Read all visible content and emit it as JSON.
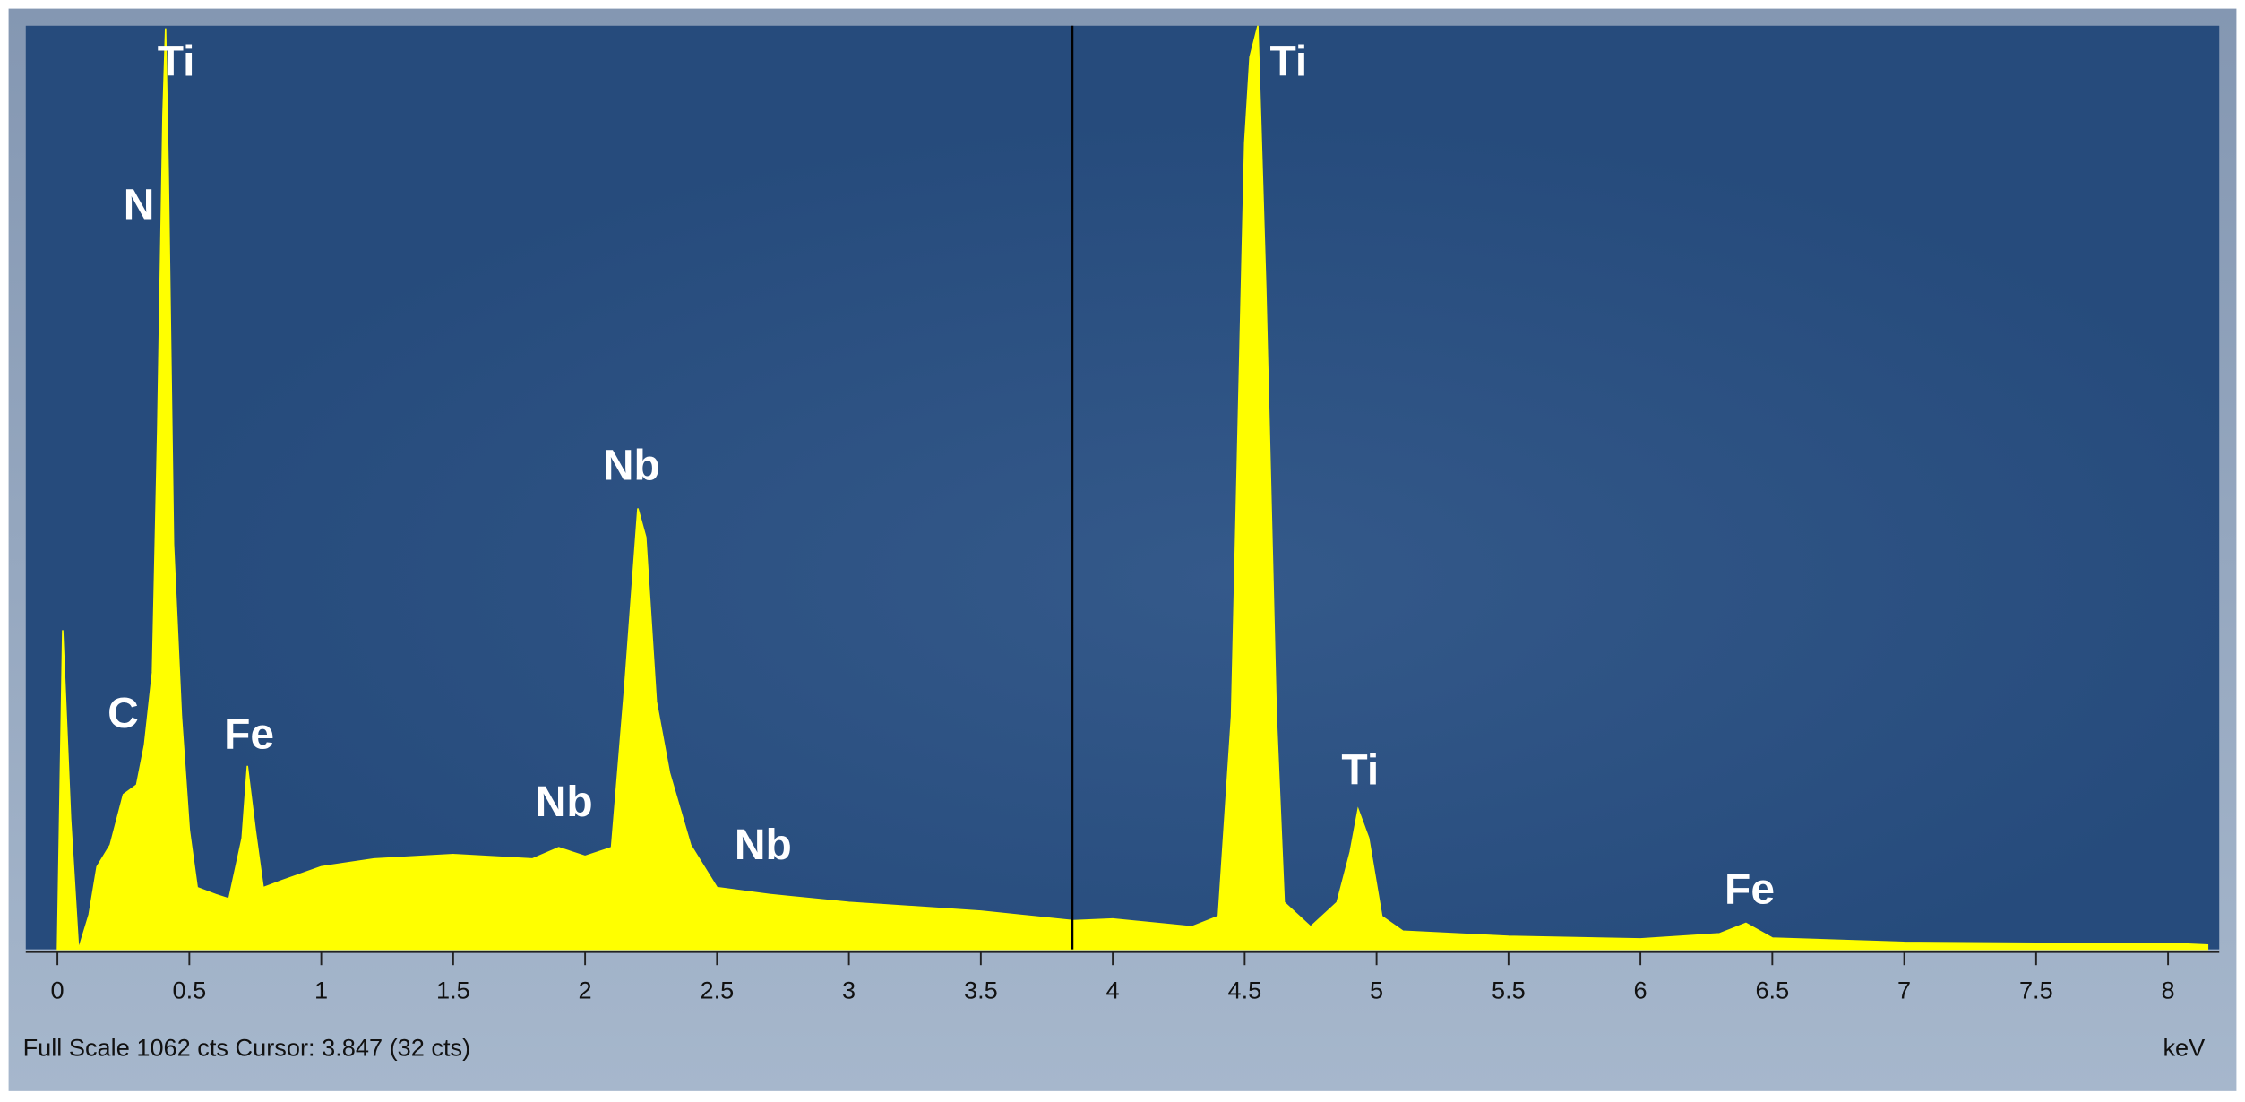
{
  "chart_data": {
    "type": "area",
    "x": [
      0,
      0.02,
      0.05,
      0.08,
      0.12,
      0.15,
      0.2,
      0.25,
      0.3,
      0.33,
      0.36,
      0.38,
      0.4,
      0.41,
      0.42,
      0.44,
      0.47,
      0.5,
      0.53,
      0.6,
      0.65,
      0.7,
      0.72,
      0.75,
      0.78,
      0.85,
      1.0,
      1.2,
      1.5,
      1.8,
      1.9,
      2.0,
      2.1,
      2.15,
      2.2,
      2.23,
      2.27,
      2.32,
      2.4,
      2.5,
      2.7,
      3.0,
      3.5,
      3.85,
      4.0,
      4.3,
      4.4,
      4.45,
      4.5,
      4.52,
      4.55,
      4.58,
      4.62,
      4.65,
      4.75,
      4.85,
      4.9,
      4.93,
      4.97,
      5.02,
      5.1,
      5.5,
      6.0,
      6.3,
      6.4,
      6.5,
      7.0,
      7.5,
      8.0,
      8.15
    ],
    "values": [
      0,
      367,
      150,
      0,
      40,
      95,
      120,
      178,
      189,
      235,
      318,
      598,
      960,
      1059,
      894,
      466,
      268,
      137,
      71,
      63,
      58,
      128,
      211,
      137,
      71,
      79,
      95,
      104,
      109,
      104,
      117,
      107,
      117,
      301,
      507,
      474,
      285,
      203,
      120,
      71,
      63,
      54,
      44,
      33,
      35,
      26,
      38,
      268,
      927,
      1026,
      1062,
      762,
      268,
      54,
      26,
      54,
      112,
      161,
      128,
      38,
      21,
      15,
      12,
      18,
      30,
      13,
      8,
      7,
      7,
      5
    ],
    "color": "#ffff00",
    "xlim": [
      -0.12,
      8.194
    ],
    "ylim": [
      0,
      1062
    ],
    "xticks": [
      0,
      0.5,
      1,
      1.5,
      2,
      2.5,
      3,
      3.5,
      4,
      4.5,
      5,
      5.5,
      6,
      6.5,
      7,
      7.5,
      8
    ],
    "xlabel": "keV",
    "cursor": 3.847,
    "status": "Full Scale 1062 cts Cursor: 3.847  (32 cts)",
    "annotations": [
      "Ti",
      "N",
      "C",
      "Fe",
      "Nb",
      "Nb",
      "Nb",
      "Ti",
      "Ti",
      "Fe"
    ]
  }
}
